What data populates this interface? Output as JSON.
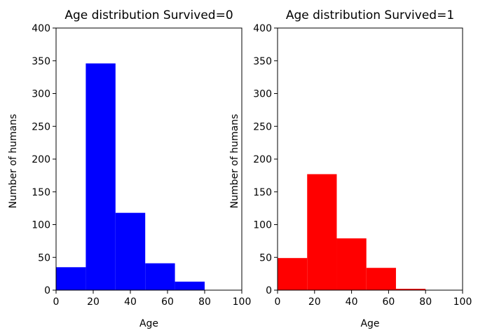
{
  "chart_data": [
    {
      "type": "bar",
      "title": "Age distribution Survived=0",
      "xlabel": "Age",
      "ylabel": "Number of humans",
      "xlim": [
        0,
        100
      ],
      "ylim": [
        0,
        400
      ],
      "xticks": [
        0,
        20,
        40,
        60,
        80,
        100
      ],
      "yticks": [
        0,
        50,
        100,
        150,
        200,
        250,
        300,
        350,
        400
      ],
      "bin_edges": [
        0,
        16,
        32,
        48,
        64,
        80
      ],
      "values": [
        35,
        346,
        118,
        41,
        13
      ],
      "color": "#0000ff",
      "grid": false
    },
    {
      "type": "bar",
      "title": "Age distribution Survived=1",
      "xlabel": "Age",
      "ylabel": "Number of humans",
      "xlim": [
        0,
        100
      ],
      "ylim": [
        0,
        400
      ],
      "xticks": [
        0,
        20,
        40,
        60,
        80,
        100
      ],
      "yticks": [
        0,
        50,
        100,
        150,
        200,
        250,
        300,
        350,
        400
      ],
      "bin_edges": [
        0,
        16,
        32,
        48,
        64,
        80
      ],
      "values": [
        49,
        177,
        79,
        34,
        2
      ],
      "color": "#ff0000",
      "grid": false
    }
  ]
}
